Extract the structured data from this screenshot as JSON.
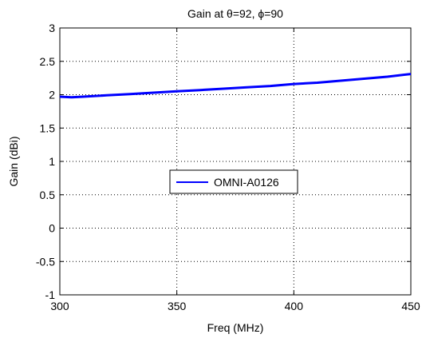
{
  "chart_data": {
    "type": "line",
    "title": "Gain at θ=92, ϕ=90",
    "xlabel": "Freq (MHz)",
    "ylabel": "Gain (dBi)",
    "xlim": [
      300,
      450
    ],
    "ylim": [
      -1,
      3
    ],
    "xticks": [
      300,
      350,
      400,
      450
    ],
    "xtick_labels": [
      "300",
      "350",
      "400",
      "450"
    ],
    "yticks": [
      -1,
      -0.5,
      0,
      0.5,
      1,
      1.5,
      2,
      2.5,
      3
    ],
    "ytick_labels": [
      "-1",
      "-0.5",
      "0",
      "0.5",
      "1",
      "1.5",
      "2",
      "2.5",
      "3"
    ],
    "grid": true,
    "legend_position": "center",
    "series": [
      {
        "name": "OMNI-A0126",
        "color": "#0000ff",
        "x": [
          300,
          305,
          310,
          320,
          330,
          340,
          350,
          360,
          370,
          380,
          390,
          400,
          410,
          420,
          430,
          440,
          450
        ],
        "y": [
          1.97,
          1.96,
          1.97,
          1.99,
          2.01,
          2.03,
          2.05,
          2.07,
          2.09,
          2.11,
          2.13,
          2.16,
          2.18,
          2.21,
          2.24,
          2.27,
          2.31
        ]
      }
    ]
  }
}
